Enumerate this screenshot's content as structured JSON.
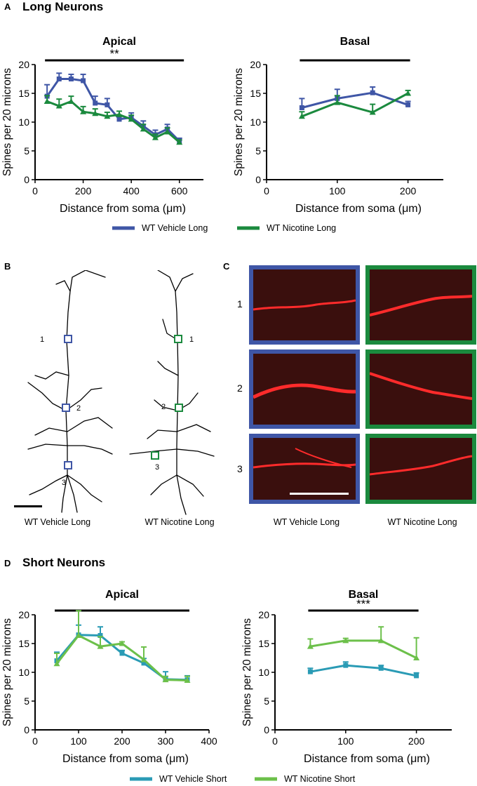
{
  "panels": {
    "a": {
      "letter": "A",
      "title": "Long Neurons"
    },
    "b": {
      "letter": "B"
    },
    "c": {
      "letter": "C"
    },
    "d": {
      "letter": "D",
      "title": "Short Neurons"
    }
  },
  "neuron_labels": {
    "vehicle": "WT Vehicle Long",
    "nicotine": "WT Nicotine Long",
    "site_1": "1",
    "site_2": "2",
    "site_3": "3"
  },
  "micrograph": {
    "rows": [
      "1",
      "2",
      "3"
    ],
    "col_vehicle": "WT Vehicle Long",
    "col_nicotine": "WT Nicotine Long",
    "vehicle_border": "#3f56a6",
    "nicotine_border": "#1b8a3e",
    "background": "#3a0f0d",
    "dendrite": "#ff2b2b"
  },
  "chart_data": [
    {
      "id": "long-apical",
      "type": "line",
      "title": "Apical",
      "xlabel": "Distance from soma (μm)",
      "ylabel": "Spines per 20 microns",
      "xlim": [
        0,
        700
      ],
      "ylim": [
        0,
        20
      ],
      "xticks": [
        0,
        200,
        400,
        600
      ],
      "yticks": [
        0,
        5,
        10,
        15,
        20
      ],
      "significance": "**",
      "sig_bar": [
        50,
        610
      ],
      "series": [
        {
          "name": "WT Vehicle Long",
          "color": "#3f56a6",
          "marker": "square",
          "x": [
            50,
            100,
            150,
            200,
            250,
            300,
            350,
            400,
            450,
            500,
            550,
            600
          ],
          "y": [
            14.5,
            17.5,
            17.5,
            17.2,
            13.3,
            13.0,
            10.5,
            10.8,
            9.3,
            7.8,
            8.8,
            6.7
          ],
          "err": [
            2.0,
            1.0,
            0.8,
            1.1,
            1.2,
            1.1,
            0.7,
            0.8,
            0.9,
            0.8,
            0.8,
            0.5
          ]
        },
        {
          "name": "WT Nicotine Long",
          "color": "#1b8a3e",
          "marker": "triangle",
          "x": [
            50,
            100,
            150,
            200,
            250,
            300,
            350,
            400,
            450,
            500,
            550,
            600
          ],
          "y": [
            13.6,
            12.8,
            13.6,
            11.8,
            11.5,
            11.0,
            11.3,
            10.5,
            8.8,
            7.3,
            8.3,
            6.5
          ],
          "err": [
            1.0,
            1.2,
            0.9,
            0.9,
            0.8,
            0.7,
            0.6,
            0.7,
            0.8,
            0.6,
            0.7,
            0.4
          ]
        }
      ]
    },
    {
      "id": "long-basal",
      "type": "line",
      "title": "Basal",
      "xlabel": "Distance from soma (μm)",
      "ylabel": "Spines per 20 microns",
      "xlim": [
        0,
        250
      ],
      "ylim": [
        0,
        20
      ],
      "xticks": [
        0,
        100,
        200
      ],
      "yticks": [
        0,
        5,
        10,
        15,
        20
      ],
      "significance": "",
      "sig_bar": [
        50,
        200
      ],
      "series": [
        {
          "name": "WT Vehicle Long",
          "color": "#3f56a6",
          "marker": "square",
          "x": [
            50,
            100,
            150,
            200
          ],
          "y": [
            12.5,
            14.1,
            15.1,
            13.0
          ],
          "err": [
            1.6,
            1.6,
            1.0,
            0.6
          ]
        },
        {
          "name": "WT Nicotine Long",
          "color": "#1b8a3e",
          "marker": "triangle",
          "x": [
            50,
            100,
            150,
            200
          ],
          "y": [
            11.0,
            13.4,
            11.7,
            15.0
          ],
          "err": [
            0.8,
            1.2,
            1.4,
            0.5
          ]
        }
      ]
    },
    {
      "id": "short-apical",
      "type": "line",
      "title": "Apical",
      "xlabel": "Distance from soma (μm)",
      "ylabel": "Spines per 20 microns",
      "xlim": [
        0,
        400
      ],
      "ylim": [
        0,
        20
      ],
      "xticks": [
        0,
        100,
        200,
        300,
        400
      ],
      "yticks": [
        0,
        5,
        10,
        15,
        20
      ],
      "significance": "",
      "sig_bar": [
        50,
        350
      ],
      "series": [
        {
          "name": "WT Vehicle Short",
          "color": "#2a9bb5",
          "marker": "square",
          "x": [
            50,
            100,
            150,
            200,
            250,
            300,
            350
          ],
          "y": [
            12.0,
            16.5,
            16.4,
            13.3,
            11.6,
            8.8,
            8.7
          ],
          "err": [
            1.5,
            1.7,
            1.5,
            0.5,
            0.8,
            1.3,
            0.7
          ]
        },
        {
          "name": "WT Nicotine Short",
          "color": "#6cc04a",
          "marker": "triangle",
          "x": [
            50,
            100,
            150,
            200,
            250,
            300,
            350
          ],
          "y": [
            11.5,
            16.4,
            14.5,
            15.0,
            12.2,
            8.7,
            8.6
          ],
          "err": [
            1.8,
            4.3,
            1.7,
            0.3,
            2.2,
            0.6,
            0.7
          ]
        }
      ]
    },
    {
      "id": "short-basal",
      "type": "line",
      "title": "Basal",
      "xlabel": "Distance from soma (μm)",
      "ylabel": "Spines per 20 microns",
      "xlim": [
        0,
        250
      ],
      "ylim": [
        0,
        20
      ],
      "xticks": [
        0,
        100,
        200
      ],
      "yticks": [
        0,
        5,
        10,
        15,
        20
      ],
      "significance": "***",
      "sig_bar": [
        50,
        200
      ],
      "series": [
        {
          "name": "WT Vehicle Short",
          "color": "#2a9bb5",
          "marker": "square",
          "x": [
            50,
            100,
            150,
            200
          ],
          "y": [
            10.1,
            11.2,
            10.7,
            9.4
          ],
          "err": [
            0.6,
            0.6,
            0.5,
            0.5
          ]
        },
        {
          "name": "WT Nicotine Short",
          "color": "#6cc04a",
          "marker": "triangle",
          "x": [
            50,
            100,
            150,
            200
          ],
          "y": [
            14.5,
            15.5,
            15.5,
            12.5
          ],
          "err": [
            1.3,
            0.4,
            2.4,
            3.5
          ]
        }
      ]
    }
  ],
  "legends": {
    "long": [
      {
        "label": "WT Vehicle Long",
        "color": "#3f56a6"
      },
      {
        "label": "WT Nicotine Long",
        "color": "#1b8a3e"
      }
    ],
    "short": [
      {
        "label": "WT Vehicle Short",
        "color": "#2a9bb5"
      },
      {
        "label": "WT Nicotine Short",
        "color": "#6cc04a"
      }
    ]
  }
}
